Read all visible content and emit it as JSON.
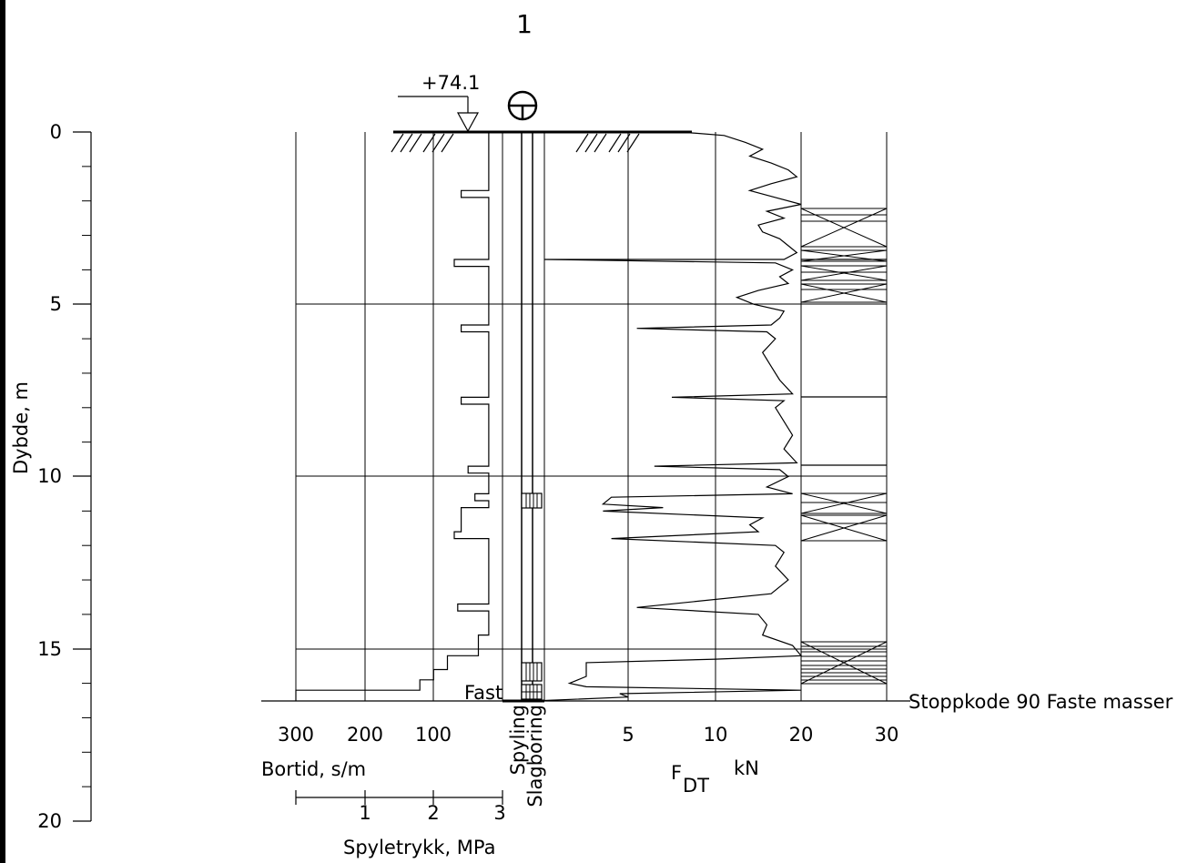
{
  "borehole_number": "1",
  "elevation_label": "+74.1",
  "depth_axis": {
    "label": "Dybde, m",
    "ticks": [
      0,
      5,
      10,
      15,
      20
    ],
    "tick_labels": [
      "0",
      "5",
      "10",
      "15",
      "20"
    ]
  },
  "bortid_axis": {
    "label": "Bortid, s/m",
    "tick_labels": [
      "300",
      "200",
      "100"
    ]
  },
  "spyletrykk_axis": {
    "label": "Spyletrykk, MPa",
    "tick_labels": [
      "1",
      "2",
      "3"
    ]
  },
  "force_axis": {
    "label_main": "F",
    "label_sub": "DT",
    "label_unit": "kN",
    "tick_labels": [
      "5",
      "10",
      "20",
      "30"
    ]
  },
  "column_labels": {
    "spyling": "Spyling",
    "slagboring": "Slagboring"
  },
  "fast_label": "Fast",
  "stop_label": "Stoppkode 90 Faste masser",
  "chart_data": {
    "type": "line",
    "ylabel": "Dybde, m",
    "ylim": [
      0,
      20
    ],
    "final_depth": 16.5,
    "bortid_series": {
      "name": "Bortid, s/m",
      "depth": [
        0,
        0.3,
        1.7,
        1.7,
        1.9,
        1.9,
        3.7,
        3.7,
        3.9,
        3.9,
        5.0,
        5.6,
        5.6,
        5.8,
        5.8,
        7.7,
        7.7,
        7.9,
        7.9,
        9.7,
        9.7,
        9.9,
        9.9,
        10.5,
        10.5,
        10.7,
        10.7,
        10.9,
        10.9,
        11.6,
        11.6,
        11.8,
        11.8,
        13.7,
        13.7,
        13.9,
        13.9,
        14.6,
        14.6,
        15.2,
        15.2,
        15.6,
        15.6,
        15.9,
        15.9,
        16.2,
        16.2,
        16.5
      ],
      "values": [
        20,
        20,
        20,
        60,
        60,
        20,
        20,
        70,
        70,
        20,
        20,
        20,
        60,
        60,
        20,
        20,
        60,
        60,
        20,
        20,
        50,
        50,
        20,
        20,
        40,
        40,
        20,
        20,
        60,
        60,
        70,
        70,
        20,
        20,
        65,
        65,
        20,
        20,
        35,
        35,
        80,
        80,
        100,
        100,
        120,
        120,
        300,
        300
      ]
    },
    "force_series": {
      "name": "F DT kN",
      "depth": [
        0,
        0.1,
        0.3,
        0.5,
        0.7,
        0.9,
        1.1,
        1.3,
        1.5,
        1.7,
        1.9,
        2.1,
        2.3,
        2.5,
        2.7,
        2.9,
        3.1,
        3.3,
        3.5,
        3.7,
        3.7,
        3.8,
        4.0,
        4.2,
        4.4,
        4.6,
        4.8,
        5.0,
        5.2,
        5.4,
        5.6,
        5.7,
        5.8,
        6.0,
        6.4,
        6.8,
        7.2,
        7.6,
        7.7,
        7.8,
        8.0,
        8.4,
        8.8,
        9.2,
        9.6,
        9.7,
        9.8,
        10.0,
        10.3,
        10.5,
        10.6,
        10.8,
        10.9,
        11.0,
        11.2,
        11.4,
        11.6,
        11.8,
        12.0,
        12.2,
        12.6,
        13.0,
        13.4,
        13.8,
        14.0,
        14.3,
        14.6,
        14.9,
        15.2,
        15.3,
        15.4,
        15.6,
        15.8,
        15.9,
        16.0,
        16.1,
        16.2,
        16.3,
        16.4,
        16.5
      ],
      "values": [
        8.0,
        11.0,
        13.5,
        15.5,
        14.0,
        16.5,
        18.5,
        19.5,
        16.5,
        14.0,
        17.0,
        20.0,
        16.0,
        18.0,
        15.0,
        15.5,
        17.5,
        18.5,
        19.5,
        18.0,
        0.0,
        17.0,
        19.0,
        17.5,
        18.5,
        15.0,
        12.5,
        14.5,
        18.0,
        17.5,
        16.5,
        5.5,
        16.0,
        17.0,
        15.5,
        16.5,
        17.5,
        19.0,
        7.5,
        18.0,
        17.0,
        18.0,
        19.0,
        18.0,
        19.5,
        6.5,
        17.5,
        18.5,
        16.0,
        19.0,
        4.0,
        3.5,
        7.0,
        3.5,
        15.5,
        14.0,
        15.0,
        4.0,
        17.0,
        18.0,
        17.0,
        18.5,
        16.5,
        5.5,
        15.0,
        16.0,
        15.5,
        19.0,
        20.0,
        10.0,
        2.5,
        2.5,
        2.5,
        2.0,
        1.5,
        2.5,
        20.0,
        4.5,
        5.0,
        0.0
      ]
    }
  }
}
